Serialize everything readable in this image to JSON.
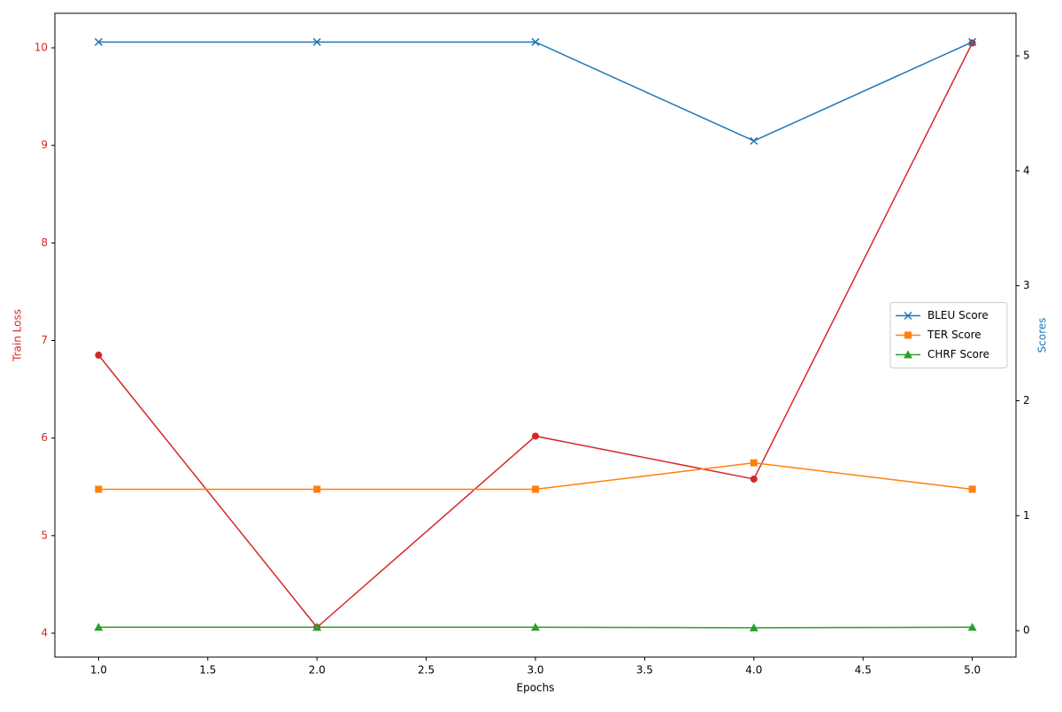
{
  "chart_data": {
    "type": "line",
    "xlabel": "Epochs",
    "ylabel": "Train Loss",
    "y2label": "Scores",
    "ylabel_color": "#d62728",
    "y2label_color": "#1f77b4",
    "x": [
      1,
      2,
      3,
      4,
      5
    ],
    "xlim": [
      0.8,
      5.2
    ],
    "xticks": [
      {
        "value": 1,
        "label": "1.0"
      },
      1.5,
      {
        "value": 2,
        "label": "2.0"
      },
      2.5,
      {
        "value": 3,
        "label": "3.0"
      },
      3.5,
      {
        "value": 4,
        "label": "4.0"
      },
      4.5,
      {
        "value": 5,
        "label": "5.0"
      }
    ],
    "ylim": [
      3.755,
      10.354
    ],
    "yticks": [
      4,
      5,
      6,
      7,
      8,
      9,
      10
    ],
    "y2lim": [
      -0.23,
      5.37
    ],
    "y2ticks": [
      0,
      1,
      2,
      3,
      4,
      5
    ],
    "legend": "center right",
    "series": [
      {
        "color": "#d62728",
        "marker": "circle",
        "axis": "y",
        "values": [
          6.85,
          4.06,
          6.02,
          5.58,
          10.05
        ]
      },
      {
        "name": "BLEU Score",
        "color": "#1f77b4",
        "marker": "x",
        "axis": "y2",
        "values": [
          5.12,
          5.12,
          5.12,
          4.26,
          5.12
        ]
      },
      {
        "name": "TER Score",
        "color": "#ff7f0e",
        "marker": "square",
        "axis": "y2",
        "values": [
          1.23,
          1.23,
          1.23,
          1.46,
          1.23
        ]
      },
      {
        "name": "CHRF Score",
        "color": "#2ca02c",
        "marker": "triangle",
        "axis": "y2",
        "values": [
          0.03,
          0.03,
          0.03,
          0.025,
          0.03
        ]
      }
    ]
  }
}
